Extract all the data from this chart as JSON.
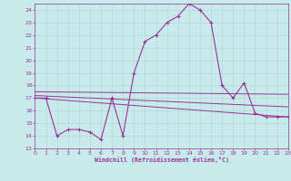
{
  "xlabel": "Windchill (Refroidissement éolien,°C)",
  "xlim": [
    0,
    23
  ],
  "ylim": [
    13,
    24.5
  ],
  "yticks": [
    13,
    14,
    15,
    16,
    17,
    18,
    19,
    20,
    21,
    22,
    23,
    24
  ],
  "xticks": [
    0,
    1,
    2,
    3,
    4,
    5,
    6,
    7,
    8,
    9,
    10,
    11,
    12,
    13,
    14,
    15,
    16,
    17,
    18,
    19,
    20,
    21,
    22,
    23
  ],
  "bg_color": "#c8eaea",
  "line_color": "#993399",
  "line1_x": [
    0,
    1,
    2,
    3,
    4,
    5,
    6,
    7,
    8,
    9,
    10,
    11,
    12,
    13,
    14,
    15,
    16,
    17,
    18,
    19,
    20,
    21,
    22,
    23
  ],
  "line1_y": [
    17.0,
    17.0,
    14.0,
    14.5,
    14.5,
    14.3,
    13.7,
    17.0,
    14.0,
    19.0,
    21.5,
    22.0,
    23.0,
    23.5,
    24.5,
    24.0,
    23.0,
    18.0,
    17.0,
    18.2,
    15.8,
    15.5,
    15.5,
    15.5
  ],
  "line2_x": [
    0,
    23
  ],
  "line2_y": [
    17.0,
    15.5
  ],
  "line3_x": [
    0,
    23
  ],
  "line3_y": [
    17.2,
    16.3
  ],
  "line4_x": [
    0,
    23
  ],
  "line4_y": [
    17.5,
    17.3
  ]
}
